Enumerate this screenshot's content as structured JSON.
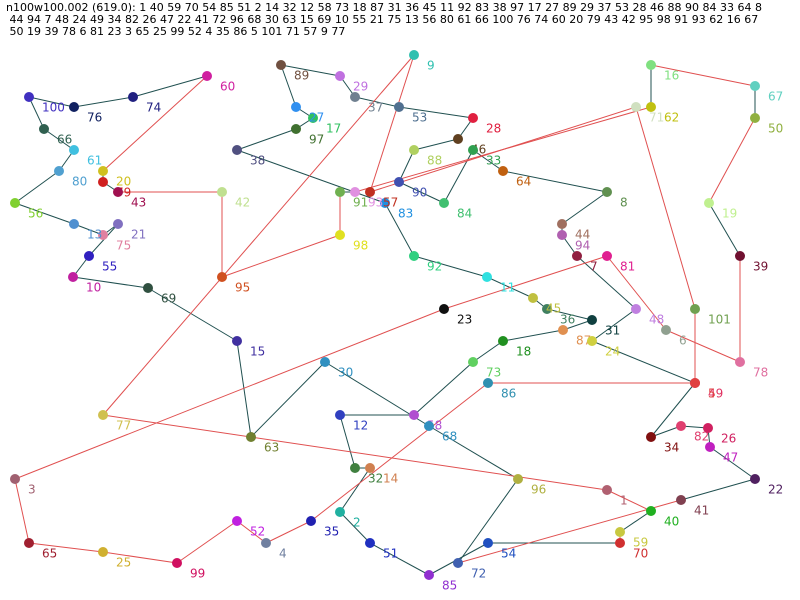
{
  "header": {
    "lines": [
      "n100w100.002 (619.0): 1 40 59 70 54 85 51 2 14 32 12 58 73 18 87 31 36 45 11 92 83 38 97 17 27 89 29 37 53 28 46 88 90 84 33 64 8",
      " 44 94 7 48 24 49 34 82 26 47 22 41 72 96 68 30 63 15 69 10 55 21 75 13 56 80 61 66 100 76 74 60 20 79 43 42 95 98 91 93 62 16 67",
      " 50 19 39 78 6 81 23 3 65 25 99 52 4 35 86 5 101 71 57 9 77"
    ]
  },
  "nodes": [
    {
      "label": "1",
      "color": "#b06070",
      "edge": "#e05050"
    },
    {
      "label": "40",
      "color": "#20b020",
      "edge": "#205050"
    },
    {
      "label": "59",
      "color": "#c8c840",
      "edge": "#e05050"
    },
    {
      "label": "70",
      "color": "#d03030",
      "edge": "#205050"
    },
    {
      "label": "54",
      "color": "#2050c0",
      "edge": "#205050"
    },
    {
      "label": "85",
      "color": "#9030d0",
      "edge": "#205050"
    },
    {
      "label": "51",
      "color": "#2030c0",
      "edge": "#205050"
    },
    {
      "label": "2",
      "color": "#20b0a0",
      "edge": "#205050"
    },
    {
      "label": "14",
      "color": "#d08050",
      "edge": "#205050"
    },
    {
      "label": "32",
      "color": "#408040",
      "edge": "#205050"
    },
    {
      "label": "12",
      "color": "#3040c0",
      "edge": "#205050"
    },
    {
      "label": "58",
      "color": "#b050d0",
      "edge": "#205050"
    },
    {
      "label": "73",
      "color": "#60d060",
      "edge": "#205050"
    },
    {
      "label": "18",
      "color": "#209020",
      "edge": "#205050"
    },
    {
      "label": "87",
      "color": "#e09050",
      "edge": "#205050"
    },
    {
      "label": "31",
      "color": "#104040",
      "edge": "#205050"
    },
    {
      "label": "36",
      "color": "#408060",
      "edge": "#205050"
    },
    {
      "label": "45",
      "color": "#c0c040",
      "edge": "#205050"
    },
    {
      "label": "11",
      "color": "#30e0e0",
      "edge": "#205050"
    },
    {
      "label": "92",
      "color": "#30d080",
      "edge": "#205050"
    },
    {
      "label": "83",
      "color": "#2090e0",
      "edge": "#205050"
    },
    {
      "label": "38",
      "color": "#505080",
      "edge": "#205050"
    },
    {
      "label": "97",
      "color": "#407030",
      "edge": "#205050"
    },
    {
      "label": "17",
      "color": "#30c060",
      "edge": "#205050"
    },
    {
      "label": "27",
      "color": "#3090f0",
      "edge": "#205050"
    },
    {
      "label": "89",
      "color": "#705040",
      "edge": "#205050"
    },
    {
      "label": "29",
      "color": "#c070e0",
      "edge": "#205050"
    },
    {
      "label": "37",
      "color": "#708090",
      "edge": "#205050"
    },
    {
      "label": "53",
      "color": "#507090",
      "edge": "#205050"
    },
    {
      "label": "28",
      "color": "#e02040",
      "edge": "#205050"
    },
    {
      "label": "46",
      "color": "#604020",
      "edge": "#205050"
    },
    {
      "label": "88",
      "color": "#b0d060",
      "edge": "#205050"
    },
    {
      "label": "90",
      "color": "#4050b0",
      "edge": "#205050"
    },
    {
      "label": "84",
      "color": "#40c070",
      "edge": "#205050"
    },
    {
      "label": "33",
      "color": "#30a050",
      "edge": "#205050"
    },
    {
      "label": "64",
      "color": "#c06010",
      "edge": "#205050"
    },
    {
      "label": "8",
      "color": "#609050",
      "edge": "#205050"
    },
    {
      "label": "44",
      "color": "#a07060",
      "edge": "#205050"
    },
    {
      "label": "94",
      "color": "#b060b0",
      "edge": "#205050"
    },
    {
      "label": "7",
      "color": "#902040",
      "edge": "#205050"
    },
    {
      "label": "48",
      "color": "#c080e0",
      "edge": "#205050"
    },
    {
      "label": "24",
      "color": "#d0d040",
      "edge": "#205050"
    },
    {
      "label": "49",
      "color": "#e03060",
      "edge": "#205050"
    },
    {
      "label": "34",
      "color": "#801010",
      "edge": "#205050"
    },
    {
      "label": "82",
      "color": "#e04070",
      "edge": "#205050"
    },
    {
      "label": "26",
      "color": "#d02060",
      "edge": "#205050"
    },
    {
      "label": "47",
      "color": "#c020c0",
      "edge": "#205050"
    },
    {
      "label": "22",
      "color": "#502060",
      "edge": "#205050"
    },
    {
      "label": "41",
      "color": "#804050",
      "edge": "#e05050"
    },
    {
      "label": "72",
      "color": "#4060b0",
      "edge": "#205050"
    },
    {
      "label": "96",
      "color": "#b0b040",
      "edge": "#205050"
    },
    {
      "label": "68",
      "color": "#3090c0",
      "edge": "#205050"
    },
    {
      "label": "30",
      "color": "#3090c0",
      "edge": "#205050"
    },
    {
      "label": "63",
      "color": "#708030",
      "edge": "#205050"
    },
    {
      "label": "15",
      "color": "#4030a0",
      "edge": "#205050"
    },
    {
      "label": "69",
      "color": "#305040",
      "edge": "#205050"
    },
    {
      "label": "10",
      "color": "#c020a0",
      "edge": "#205050"
    },
    {
      "label": "55",
      "color": "#3020c0",
      "edge": "#205050"
    },
    {
      "label": "21",
      "color": "#8070c0",
      "edge": "#205050"
    },
    {
      "label": "75",
      "color": "#e080a0",
      "edge": "#205050"
    },
    {
      "label": "13",
      "color": "#5090d0",
      "edge": "#205050"
    },
    {
      "label": "56",
      "color": "#80d030",
      "edge": "#205050"
    },
    {
      "label": "80",
      "color": "#50a0d0",
      "edge": "#205050"
    },
    {
      "label": "61",
      "color": "#40c0e0",
      "edge": "#205050"
    },
    {
      "label": "66",
      "color": "#306050",
      "edge": "#205050"
    },
    {
      "label": "100",
      "color": "#4030c0",
      "edge": "#205050"
    },
    {
      "label": "76",
      "color": "#102060",
      "edge": "#205050"
    },
    {
      "label": "74",
      "color": "#202080",
      "edge": "#205050"
    },
    {
      "label": "60",
      "color": "#d020a0",
      "edge": "#e05050"
    },
    {
      "label": "20",
      "color": "#d0c020",
      "edge": "#205050"
    },
    {
      "label": "79",
      "color": "#d02020",
      "edge": "#205050"
    },
    {
      "label": "43",
      "color": "#a01050",
      "edge": "#e05050"
    },
    {
      "label": "42",
      "color": "#c0e090",
      "edge": "#e05050"
    },
    {
      "label": "95",
      "color": "#d05020",
      "edge": "#e05050"
    },
    {
      "label": "98",
      "color": "#e0e020",
      "edge": "#e05050"
    },
    {
      "label": "91",
      "color": "#70b050",
      "edge": "#205050"
    },
    {
      "label": "93",
      "color": "#e090e0",
      "edge": "#e05050"
    },
    {
      "label": "62",
      "color": "#c0c010",
      "edge": "#205050"
    },
    {
      "label": "16",
      "color": "#80e080",
      "edge": "#e05050"
    },
    {
      "label": "67",
      "color": "#60d0c0",
      "edge": "#205050"
    },
    {
      "label": "50",
      "color": "#90b040",
      "edge": "#e05050"
    },
    {
      "label": "19",
      "color": "#c0f090",
      "edge": "#205050"
    },
    {
      "label": "39",
      "color": "#701030",
      "edge": "#e05050"
    },
    {
      "label": "78",
      "color": "#e070a0",
      "edge": "#e05050"
    },
    {
      "label": "6",
      "color": "#90a090",
      "edge": "#e05050"
    },
    {
      "label": "81",
      "color": "#e02090",
      "edge": "#e05050"
    },
    {
      "label": "23",
      "color": "#101010",
      "edge": "#e05050"
    },
    {
      "label": "3",
      "color": "#a06070",
      "edge": "#e05050"
    },
    {
      "label": "65",
      "color": "#a02030",
      "edge": "#e05050"
    },
    {
      "label": "25",
      "color": "#d0b030",
      "edge": "#e05050"
    },
    {
      "label": "99",
      "color": "#d01060",
      "edge": "#e05050"
    },
    {
      "label": "52",
      "color": "#c020e0",
      "edge": "#e05050"
    },
    {
      "label": "4",
      "color": "#7080a0",
      "edge": "#e05050"
    },
    {
      "label": "35",
      "color": "#2020b0",
      "edge": "#e05050"
    },
    {
      "label": "86",
      "color": "#3090b0",
      "edge": "#e05050"
    },
    {
      "label": "5",
      "color": "#e04040",
      "edge": "#e05050"
    },
    {
      "label": "101",
      "color": "#70a050",
      "edge": "#e05050"
    },
    {
      "label": "71",
      "color": "#d0e0c0",
      "edge": "#e05050"
    },
    {
      "label": "57",
      "color": "#c03020",
      "edge": "#e05050"
    },
    {
      "label": "9",
      "color": "#30c0b0",
      "edge": "#e05050"
    },
    {
      "label": "77",
      "color": "#d0c050",
      "edge": "#e05050"
    }
  ]
}
